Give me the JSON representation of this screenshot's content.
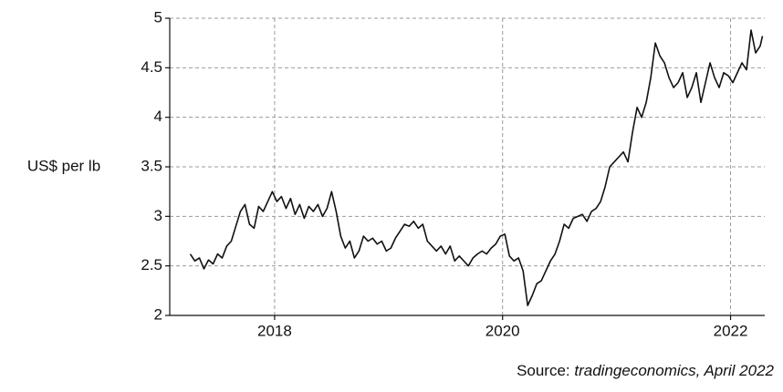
{
  "chart_data": {
    "type": "line",
    "y_label": "US$ per lb",
    "source_label": "Source:",
    "source": "tradingeconomics, April 2022",
    "color": "#111111",
    "grid": true,
    "xlim": [
      2017.08,
      2022.3
    ],
    "ylim": [
      2,
      5
    ],
    "xticks": [
      2018,
      2020,
      2022
    ],
    "yticks": [
      2,
      2.5,
      3,
      3.5,
      4,
      4.5,
      5
    ],
    "x": [
      2017.26,
      2017.3,
      2017.34,
      2017.38,
      2017.42,
      2017.46,
      2017.5,
      2017.54,
      2017.58,
      2017.62,
      2017.66,
      2017.7,
      2017.74,
      2017.78,
      2017.82,
      2017.86,
      2017.9,
      2017.94,
      2017.98,
      2018.02,
      2018.06,
      2018.1,
      2018.14,
      2018.18,
      2018.22,
      2018.26,
      2018.3,
      2018.34,
      2018.38,
      2018.42,
      2018.46,
      2018.5,
      2018.54,
      2018.58,
      2018.62,
      2018.66,
      2018.7,
      2018.74,
      2018.78,
      2018.82,
      2018.86,
      2018.9,
      2018.94,
      2018.98,
      2019.02,
      2019.06,
      2019.1,
      2019.14,
      2019.18,
      2019.22,
      2019.26,
      2019.3,
      2019.34,
      2019.38,
      2019.42,
      2019.46,
      2019.5,
      2019.54,
      2019.58,
      2019.62,
      2019.66,
      2019.7,
      2019.74,
      2019.78,
      2019.82,
      2019.86,
      2019.9,
      2019.94,
      2019.98,
      2020.02,
      2020.06,
      2020.1,
      2020.14,
      2020.18,
      2020.22,
      2020.26,
      2020.3,
      2020.34,
      2020.38,
      2020.42,
      2020.46,
      2020.5,
      2020.54,
      2020.58,
      2020.62,
      2020.66,
      2020.7,
      2020.74,
      2020.78,
      2020.82,
      2020.86,
      2020.9,
      2020.94,
      2020.98,
      2021.02,
      2021.06,
      2021.1,
      2021.14,
      2021.18,
      2021.22,
      2021.26,
      2021.3,
      2021.34,
      2021.38,
      2021.42,
      2021.46,
      2021.5,
      2021.54,
      2021.58,
      2021.62,
      2021.66,
      2021.7,
      2021.74,
      2021.78,
      2021.82,
      2021.86,
      2021.9,
      2021.94,
      2021.98,
      2022.02,
      2022.06,
      2022.1,
      2022.14,
      2022.18,
      2022.22,
      2022.26,
      2022.28
    ],
    "values": [
      2.62,
      2.55,
      2.58,
      2.47,
      2.56,
      2.52,
      2.62,
      2.58,
      2.7,
      2.75,
      2.9,
      3.05,
      3.12,
      2.92,
      2.88,
      3.1,
      3.05,
      3.15,
      3.25,
      3.15,
      3.2,
      3.08,
      3.18,
      3.02,
      3.12,
      2.98,
      3.1,
      3.05,
      3.12,
      3.0,
      3.08,
      3.25,
      3.05,
      2.8,
      2.68,
      2.75,
      2.58,
      2.65,
      2.8,
      2.75,
      2.78,
      2.72,
      2.75,
      2.65,
      2.68,
      2.78,
      2.85,
      2.92,
      2.9,
      2.95,
      2.88,
      2.92,
      2.75,
      2.7,
      2.65,
      2.7,
      2.62,
      2.7,
      2.55,
      2.6,
      2.55,
      2.5,
      2.58,
      2.62,
      2.65,
      2.62,
      2.68,
      2.72,
      2.8,
      2.82,
      2.6,
      2.55,
      2.58,
      2.45,
      2.1,
      2.2,
      2.32,
      2.35,
      2.45,
      2.55,
      2.62,
      2.75,
      2.92,
      2.88,
      2.98,
      3.0,
      3.02,
      2.95,
      3.05,
      3.08,
      3.15,
      3.3,
      3.5,
      3.55,
      3.6,
      3.65,
      3.55,
      3.85,
      4.1,
      4.0,
      4.15,
      4.4,
      4.75,
      4.62,
      4.55,
      4.4,
      4.3,
      4.35,
      4.45,
      4.2,
      4.3,
      4.45,
      4.15,
      4.35,
      4.55,
      4.4,
      4.3,
      4.45,
      4.42,
      4.35,
      4.45,
      4.55,
      4.48,
      4.88,
      4.65,
      4.72,
      4.82
    ]
  }
}
